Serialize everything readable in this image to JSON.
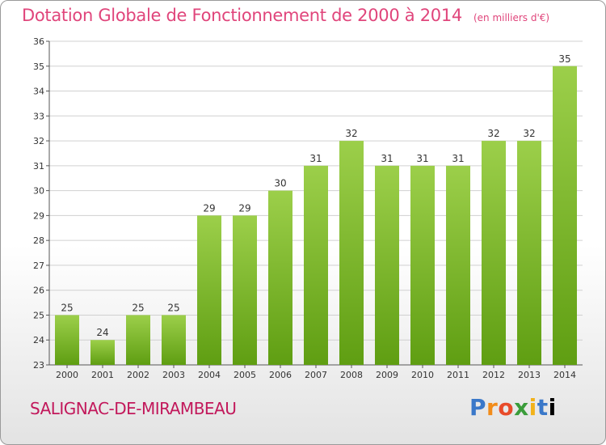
{
  "header": {
    "title": "Dotation Globale de Fonctionnement de 2000 à 2014",
    "unit": "(en milliers d'€)"
  },
  "footer": {
    "commune": "SALIGNAC-DE-MIRAMBEAU",
    "logo": "Proxiti"
  },
  "colors": {
    "bar_top": "#9ccf4a",
    "bar_bottom": "#5f9e12",
    "grid": "#d0d0d0",
    "title": "#e0457b"
  },
  "chart_data": {
    "type": "bar",
    "title": "Dotation Globale de Fonctionnement de 2000 à 2014",
    "categories": [
      "2000",
      "2001",
      "2002",
      "2003",
      "2004",
      "2005",
      "2006",
      "2007",
      "2008",
      "2009",
      "2010",
      "2011",
      "2012",
      "2013",
      "2014"
    ],
    "values": [
      25,
      24,
      25,
      25,
      29,
      29,
      30,
      31,
      32,
      31,
      31,
      31,
      32,
      32,
      35
    ],
    "data_labels": [
      "25",
      "24",
      "25",
      "25",
      "29",
      "29",
      "30",
      "31",
      "32",
      "31",
      "31",
      "31",
      "32",
      "32",
      "35"
    ],
    "ylim": [
      23,
      36
    ],
    "yticks": [
      "23",
      "24",
      "25",
      "26",
      "27",
      "28",
      "29",
      "30",
      "31",
      "32",
      "33",
      "34",
      "35",
      "36"
    ],
    "xlabel": "",
    "ylabel": "",
    "grid": true,
    "legend": "none"
  }
}
